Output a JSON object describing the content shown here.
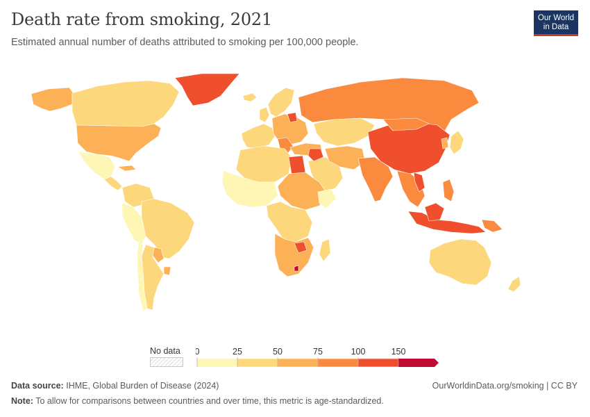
{
  "header": {
    "title": "Death rate from smoking, 2021",
    "subtitle": "Estimated annual number of deaths attributed to smoking per 100,000 people."
  },
  "logo": {
    "line1": "Our World",
    "line2": "in Data"
  },
  "legend": {
    "no_data_label": "No data",
    "ticks": [
      "0",
      "25",
      "50",
      "75",
      "100",
      "150"
    ],
    "bins": [
      {
        "from": 0,
        "to": 25,
        "color": "#fef6b4"
      },
      {
        "from": 25,
        "to": 50,
        "color": "#fdd77c"
      },
      {
        "from": 50,
        "to": 75,
        "color": "#fcb157"
      },
      {
        "from": 75,
        "to": 100,
        "color": "#f98a3e"
      },
      {
        "from": 100,
        "to": 150,
        "color": "#ef4f2c"
      },
      {
        "from": 150,
        "to": null,
        "color": "#bf0a34"
      }
    ]
  },
  "footer": {
    "source_label": "Data source:",
    "source_text": "IHME, Global Burden of Disease (2024)",
    "note_label": "Note:",
    "note_text": "To allow for comparisons between countries and over time, this metric is age-standardized.",
    "url_text": "OurWorldinData.org/smoking | CC BY"
  },
  "colors": {
    "band1": "#fef6b4",
    "band2": "#fdd77c",
    "band3": "#fcb157",
    "band4": "#f98a3e",
    "band5": "#ef4f2c",
    "band6": "#bf0a34"
  }
}
